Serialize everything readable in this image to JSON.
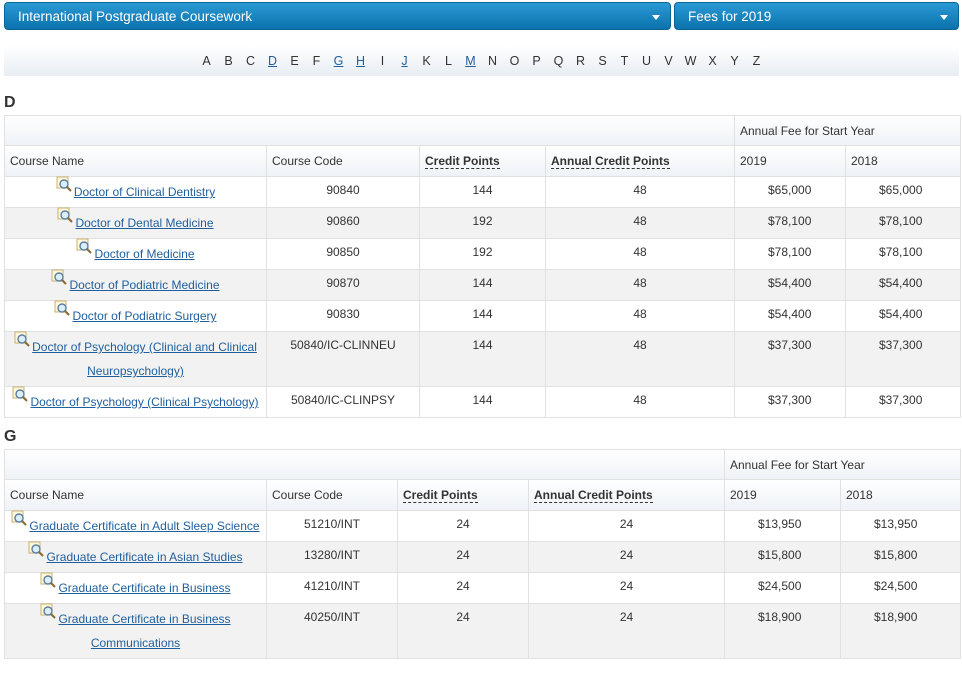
{
  "dropdowns": [
    "International Postgraduate Coursework",
    "Fees for 2019"
  ],
  "letters": [
    {
      "text": "A",
      "link": false
    },
    {
      "text": "B",
      "link": false
    },
    {
      "text": "C",
      "link": false
    },
    {
      "text": "D",
      "link": true
    },
    {
      "text": "E",
      "link": false
    },
    {
      "text": "F",
      "link": false
    },
    {
      "text": "G",
      "link": true
    },
    {
      "text": "H",
      "link": true
    },
    {
      "text": "I",
      "link": false
    },
    {
      "text": "J",
      "link": true
    },
    {
      "text": "K",
      "link": false
    },
    {
      "text": "L",
      "link": false
    },
    {
      "text": "M",
      "link": true
    },
    {
      "text": "N",
      "link": false
    },
    {
      "text": "O",
      "link": false
    },
    {
      "text": "P",
      "link": false
    },
    {
      "text": "Q",
      "link": false
    },
    {
      "text": "R",
      "link": false
    },
    {
      "text": "S",
      "link": false
    },
    {
      "text": "T",
      "link": false
    },
    {
      "text": "U",
      "link": false
    },
    {
      "text": "V",
      "link": false
    },
    {
      "text": "W",
      "link": false
    },
    {
      "text": "X",
      "link": false
    },
    {
      "text": "Y",
      "link": false
    },
    {
      "text": "Z",
      "link": false
    }
  ],
  "sections": [
    {
      "letter": "D",
      "group_header": "Annual Fee for Start Year",
      "columns": [
        "Course Name",
        "Course Code",
        "Credit Points",
        "Annual Credit Points",
        "2019",
        "2018"
      ],
      "rows": [
        [
          "Doctor of Clinical Dentistry",
          "90840",
          "144",
          "48",
          "$65,000",
          "$65,000"
        ],
        [
          "Doctor of Dental Medicine",
          "90860",
          "192",
          "48",
          "$78,100",
          "$78,100"
        ],
        [
          "Doctor of Medicine",
          "90850",
          "192",
          "48",
          "$78,100",
          "$78,100"
        ],
        [
          "Doctor of Podiatric Medicine",
          "90870",
          "144",
          "48",
          "$54,400",
          "$54,400"
        ],
        [
          "Doctor of Podiatric Surgery",
          "90830",
          "144",
          "48",
          "$54,400",
          "$54,400"
        ],
        [
          "Doctor of Psychology (Clinical and Clinical Neuropsychology)",
          "50840/IC-CLINNEU",
          "144",
          "48",
          "$37,300",
          "$37,300"
        ],
        [
          "Doctor of Psychology (Clinical Psychology)",
          "50840/IC-CLINPSY",
          "144",
          "48",
          "$37,300",
          "$37,300"
        ]
      ]
    },
    {
      "letter": "G",
      "group_header": "Annual Fee for Start Year",
      "columns": [
        "Course Name",
        "Course Code",
        "Credit Points",
        "Annual Credit Points",
        "2019",
        "2018"
      ],
      "rows": [
        [
          "Graduate Certificate in Adult Sleep Science",
          "51210/INT",
          "24",
          "24",
          "$13,950",
          "$13,950"
        ],
        [
          "Graduate Certificate in Asian Studies",
          "13280/INT",
          "24",
          "24",
          "$15,800",
          "$15,800"
        ],
        [
          "Graduate Certificate in Business",
          "41210/INT",
          "24",
          "24",
          "$24,500",
          "$24,500"
        ],
        [
          "Graduate Certificate in Business Communications",
          "40250/INT",
          "24",
          "24",
          "$18,900",
          "$18,900"
        ]
      ]
    }
  ]
}
